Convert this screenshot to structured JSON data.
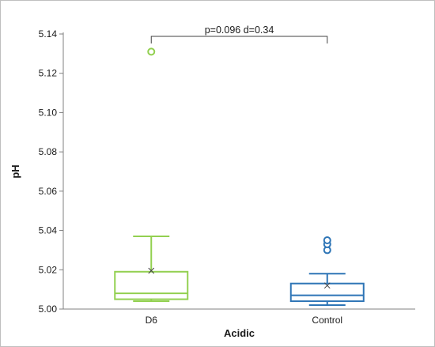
{
  "chart_data": {
    "type": "box",
    "xlabel": "Acidic",
    "ylabel": "pH",
    "ylim": [
      5.0,
      5.14
    ],
    "yticks": [
      "5.00",
      "5.02",
      "5.04",
      "5.06",
      "5.08",
      "5.10",
      "5.12",
      "5.14"
    ],
    "categories": [
      "D6",
      "Control"
    ],
    "boxes": [
      {
        "category": "D6",
        "color": "#92d050",
        "whisker_low": 5.004,
        "q1": 5.005,
        "median": 5.008,
        "q3": 5.019,
        "whisker_high": 5.037,
        "mean": 5.0195,
        "outliers": [
          5.131
        ]
      },
      {
        "category": "Control",
        "color": "#2e75b6",
        "whisker_low": 5.002,
        "q1": 5.004,
        "median": 5.007,
        "q3": 5.013,
        "whisker_high": 5.018,
        "mean": 5.012,
        "outliers": [
          5.03,
          5.033,
          5.035
        ]
      }
    ],
    "annotation": "p=0.096   d=0.34",
    "grid": false,
    "legend": "none"
  }
}
